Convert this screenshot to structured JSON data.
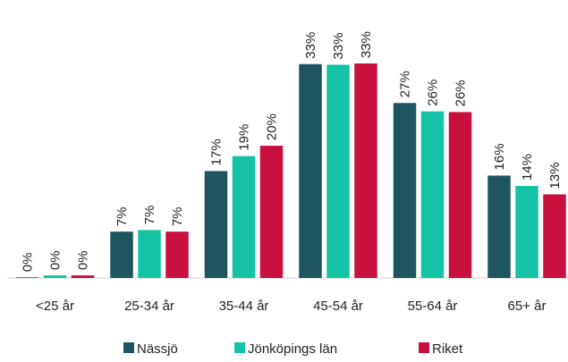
{
  "chart_data": {
    "type": "bar",
    "categories": [
      "<25 år",
      "25-34 år",
      "35-44 år",
      "45-54 år",
      "55-64 år",
      "65+ år"
    ],
    "series": [
      {
        "name": "Nässjö",
        "color": "#1e5560",
        "values": [
          0.1,
          7.15,
          16.5,
          33.0,
          27.0,
          15.8
        ],
        "value_labels": [
          "0%",
          "7%",
          "17%",
          "33%",
          "27%",
          "16%"
        ]
      },
      {
        "name": "Jönköpings län",
        "color": "#14c3a5",
        "values": [
          0.4,
          7.4,
          18.8,
          32.9,
          25.7,
          14.2
        ],
        "value_labels": [
          "0%",
          "7%",
          "19%",
          "33%",
          "26%",
          "14%"
        ]
      },
      {
        "name": "Riket",
        "color": "#c8103e",
        "values": [
          0.4,
          7.15,
          20.4,
          33.1,
          25.6,
          12.9
        ],
        "value_labels": [
          "0%",
          "7%",
          "20%",
          "33%",
          "26%",
          "13%"
        ]
      }
    ],
    "legend": "bottom"
  }
}
